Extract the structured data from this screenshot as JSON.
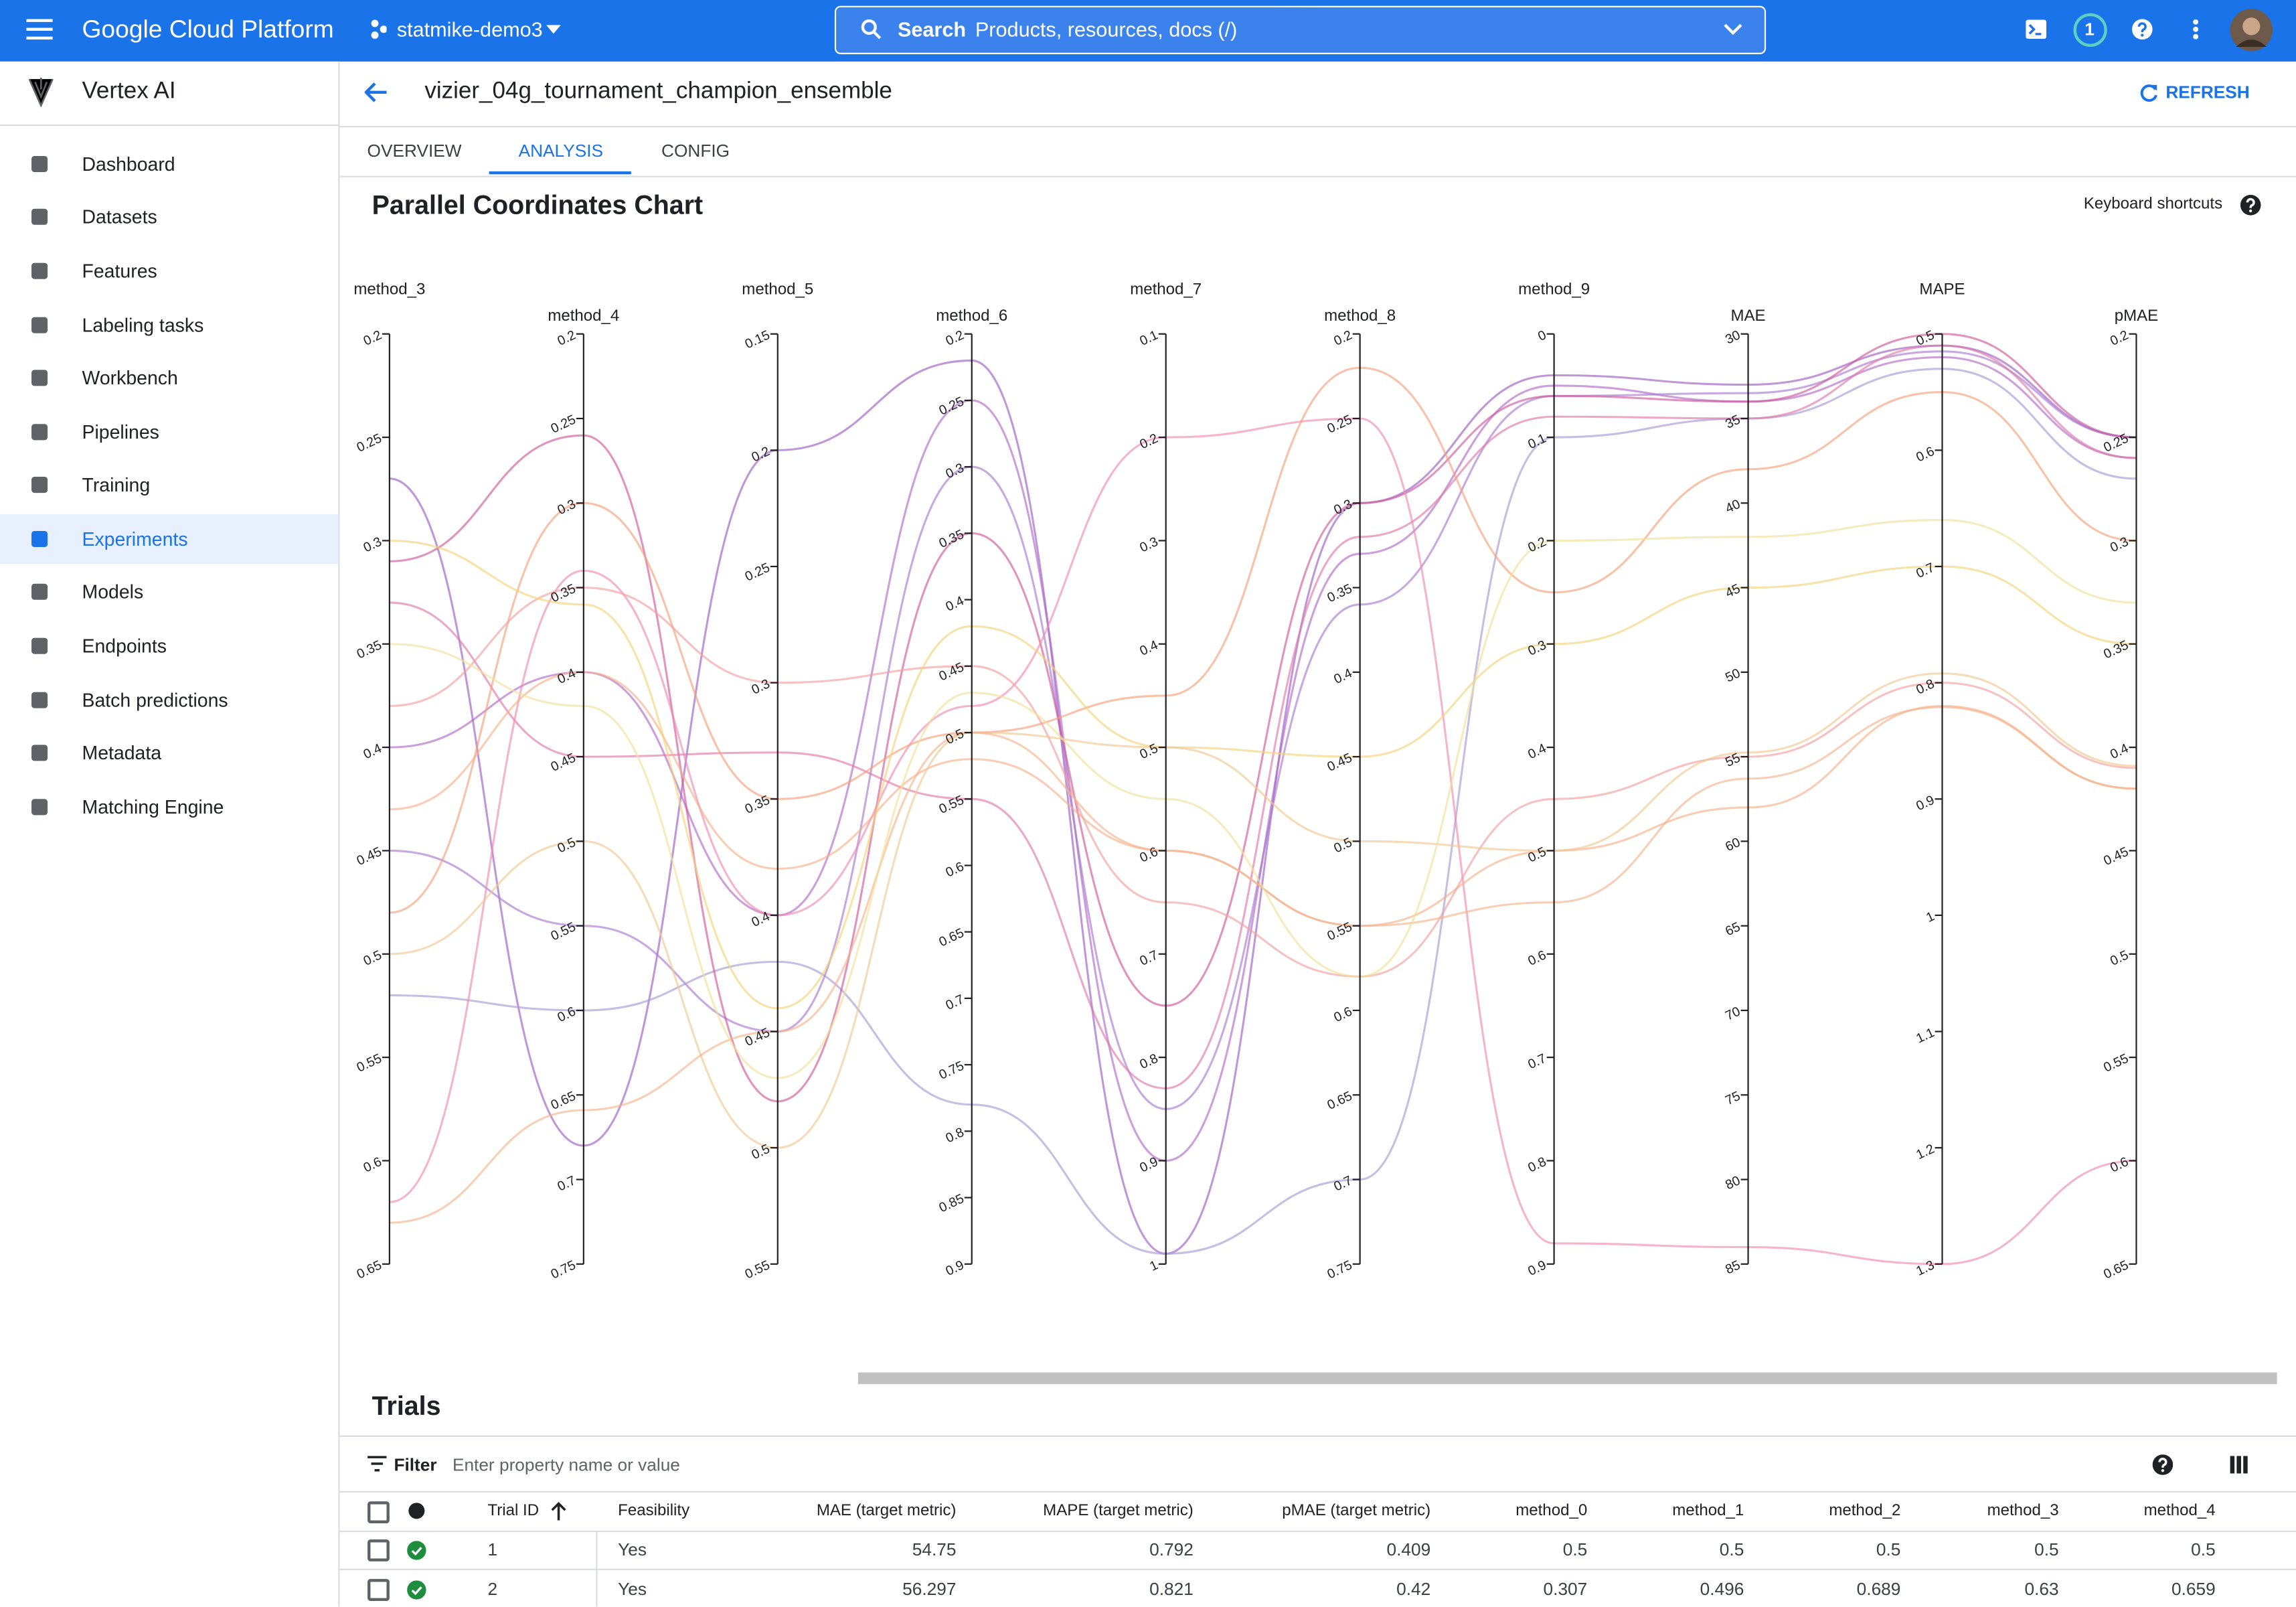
{
  "topbar": {
    "product": "Google Cloud Platform",
    "project": "statmike-demo3",
    "search_label": "Search",
    "search_placeholder": "Products, resources, docs (/)",
    "notifications": "1"
  },
  "sidebar": {
    "title": "Vertex AI",
    "items": [
      "Dashboard",
      "Datasets",
      "Features",
      "Labeling tasks",
      "Workbench",
      "Pipelines",
      "Training",
      "Experiments",
      "Models",
      "Endpoints",
      "Batch predictions",
      "Metadata",
      "Matching Engine"
    ]
  },
  "header": {
    "title": "vizier_04g_tournament_champion_ensemble",
    "refresh": "REFRESH",
    "tabs": [
      "OVERVIEW",
      "ANALYSIS",
      "CONFIG"
    ],
    "shortcuts": "Keyboard shortcuts"
  },
  "chart_data": {
    "type": "parallel",
    "title": "Parallel Coordinates Chart",
    "axes": [
      {
        "name": "method_3",
        "ylim": [
          0.2,
          0.65
        ],
        "ticks": [
          0.2,
          0.25,
          0.3,
          0.35,
          0.4,
          0.45,
          0.5,
          0.55,
          0.6,
          0.65
        ]
      },
      {
        "name": "method_4",
        "ylim": [
          0.2,
          0.75
        ],
        "ticks": [
          0.2,
          0.25,
          0.3,
          0.35,
          0.4,
          0.45,
          0.5,
          0.55,
          0.6,
          0.65,
          0.7,
          0.75
        ]
      },
      {
        "name": "method_5",
        "ylim": [
          0.15,
          0.55
        ],
        "ticks": [
          0.15,
          0.2,
          0.25,
          0.3,
          0.35,
          0.4,
          0.45,
          0.5,
          0.55
        ]
      },
      {
        "name": "method_6",
        "ylim": [
          0.2,
          0.9
        ],
        "ticks": [
          0.2,
          0.25,
          0.3,
          0.35,
          0.4,
          0.45,
          0.5,
          0.55,
          0.6,
          0.65,
          0.7,
          0.75,
          0.8,
          0.85,
          0.9
        ]
      },
      {
        "name": "method_7",
        "ylim": [
          0.1,
          1
        ],
        "ticks": [
          0.1,
          0.2,
          0.3,
          0.4,
          0.5,
          0.6,
          0.7,
          0.8,
          0.9,
          1
        ]
      },
      {
        "name": "method_8",
        "ylim": [
          0.2,
          0.75
        ],
        "ticks": [
          0.2,
          0.25,
          0.3,
          0.35,
          0.4,
          0.45,
          0.5,
          0.55,
          0.6,
          0.65,
          0.7,
          0.75
        ]
      },
      {
        "name": "method_9",
        "ylim": [
          0,
          0.9
        ],
        "ticks": [
          0,
          0.1,
          0.2,
          0.3,
          0.4,
          0.5,
          0.6,
          0.7,
          0.8,
          0.9
        ]
      },
      {
        "name": "MAE",
        "ylim": [
          30,
          85
        ],
        "ticks": [
          30,
          35,
          40,
          45,
          50,
          55,
          60,
          65,
          70,
          75,
          80,
          85
        ]
      },
      {
        "name": "MAPE",
        "ylim": [
          0.5,
          1.3
        ],
        "ticks": [
          0.5,
          0.6,
          0.7,
          0.8,
          0.9,
          1,
          1.1,
          1.2,
          1.3
        ]
      },
      {
        "name": "pMAE",
        "ylim": [
          0.2,
          0.65
        ],
        "ticks": [
          0.2,
          0.25,
          0.3,
          0.35,
          0.4,
          0.45,
          0.5,
          0.55,
          0.6,
          0.65
        ]
      }
    ],
    "series": [
      {
        "color": "#9c5fc4",
        "values": [
          0.27,
          0.68,
          0.2,
          0.22,
          0.99,
          0.3,
          0.04,
          33,
          0.51,
          0.25
        ]
      },
      {
        "color": "#b06ac8",
        "values": [
          0.4,
          0.4,
          0.4,
          0.25,
          0.9,
          0.33,
          0.05,
          34,
          0.52,
          0.26
        ]
      },
      {
        "color": "#a77bd0",
        "values": [
          0.45,
          0.55,
          0.45,
          0.3,
          0.85,
          0.36,
          0.06,
          33.5,
          0.515,
          0.25
        ]
      },
      {
        "color": "#a89ad6",
        "values": [
          0.52,
          0.6,
          0.42,
          0.78,
          0.99,
          0.7,
          0.1,
          35,
          0.53,
          0.27
        ]
      },
      {
        "color": "#d05a9a",
        "values": [
          0.31,
          0.26,
          0.48,
          0.35,
          0.75,
          0.3,
          0.06,
          34,
          0.5,
          0.25
        ]
      },
      {
        "color": "#e07aa8",
        "values": [
          0.33,
          0.45,
          0.33,
          0.55,
          0.83,
          0.32,
          0.08,
          35,
          0.51,
          0.26
        ]
      },
      {
        "color": "#f08ab0",
        "values": [
          0.62,
          0.34,
          0.4,
          0.48,
          0.2,
          0.25,
          0.88,
          84,
          1.3,
          0.6
        ]
      },
      {
        "color": "#f4a07a",
        "values": [
          0.48,
          0.3,
          0.35,
          0.5,
          0.45,
          0.22,
          0.25,
          38,
          0.55,
          0.3
        ]
      },
      {
        "color": "#f6b08a",
        "values": [
          0.43,
          0.4,
          0.38,
          0.52,
          0.6,
          0.55,
          0.5,
          58,
          0.82,
          0.42
        ]
      },
      {
        "color": "#f2a0a0",
        "values": [
          0.38,
          0.35,
          0.3,
          0.45,
          0.65,
          0.58,
          0.45,
          55,
          0.8,
          0.41
        ]
      },
      {
        "color": "#f3d27a",
        "values": [
          0.3,
          0.36,
          0.44,
          0.42,
          0.5,
          0.45,
          0.3,
          45,
          0.7,
          0.35
        ]
      },
      {
        "color": "#f0c890",
        "values": [
          0.5,
          0.5,
          0.5,
          0.5,
          0.5,
          0.5,
          0.5,
          54.75,
          0.792,
          0.409
        ]
      },
      {
        "color": "#f4b48c",
        "values": [
          0.63,
          0.659,
          0.45,
          0.5,
          0.6,
          0.55,
          0.55,
          56.297,
          0.821,
          0.42
        ]
      },
      {
        "color": "#efe09a",
        "values": [
          0.35,
          0.42,
          0.47,
          0.47,
          0.55,
          0.58,
          0.2,
          42,
          0.66,
          0.33
        ]
      }
    ]
  },
  "trials": {
    "title": "Trials",
    "filter_label": "Filter",
    "filter_placeholder": "Enter property name or value",
    "columns": [
      "Trial ID",
      "Feasibility",
      "MAE (target metric)",
      "MAPE (target metric)",
      "pMAE (target metric)",
      "method_0",
      "method_1",
      "method_2",
      "method_3",
      "method_4"
    ],
    "rows": [
      [
        1,
        "Yes",
        54.75,
        0.792,
        0.409,
        0.5,
        0.5,
        0.5,
        0.5,
        0.5
      ],
      [
        2,
        "Yes",
        56.297,
        0.821,
        0.42,
        0.307,
        0.496,
        0.689,
        0.63,
        0.659
      ]
    ]
  }
}
